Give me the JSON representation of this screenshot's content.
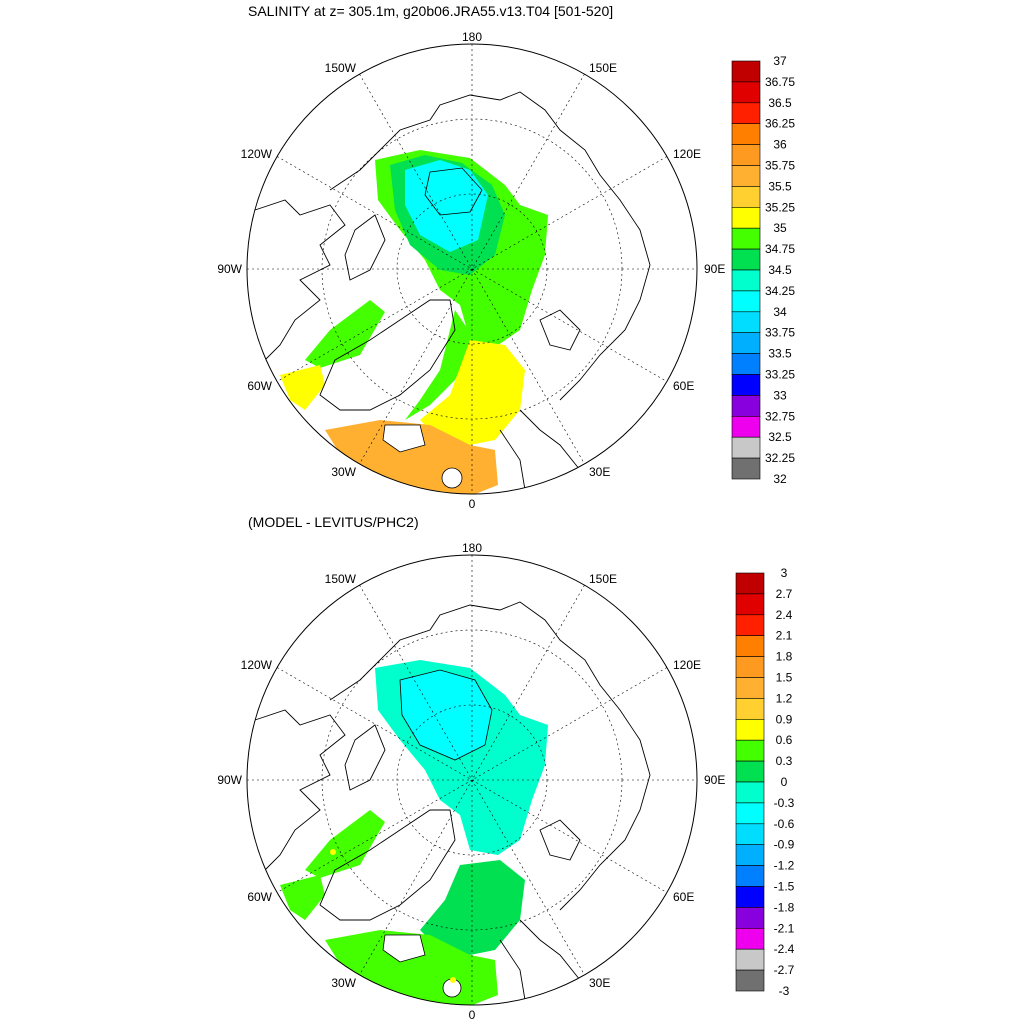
{
  "panels": [
    {
      "title": "SALINITY at z= 305.1m, g20b06.JRA55.v13.T04 [501-520]",
      "lon_labels": {
        "top": "180",
        "bottom": "0",
        "left": "90W",
        "right": "90E",
        "upper_left": "150W",
        "upper_left2": "120W",
        "lower_left": "60W",
        "lower_left2": "30W",
        "upper_right": "150E",
        "upper_right2": "120E",
        "lower_right": "60E",
        "lower_right2": "30E"
      },
      "colorbar": {
        "labels": [
          "37",
          "36.75",
          "36.5",
          "36.25",
          "36",
          "35.75",
          "35.5",
          "35.25",
          "35",
          "34.75",
          "34.5",
          "34.25",
          "34",
          "33.75",
          "33.5",
          "33.25",
          "33",
          "32.75",
          "32.5",
          "32.25",
          "32"
        ],
        "colors": [
          "#c00000",
          "#e00000",
          "#ff2000",
          "#ff8000",
          "#ff9a20",
          "#ffb030",
          "#ffd030",
          "#ffff00",
          "#44ff00",
          "#00e050",
          "#00ffcc",
          "#00ffff",
          "#00ddff",
          "#00b0ff",
          "#0080ff",
          "#0000ff",
          "#8800dd",
          "#ee00ee",
          "#c8c8c8",
          "#707070"
        ]
      }
    },
    {
      "title": "(MODEL - LEVITUS/PHC2)",
      "lon_labels": {
        "top": "180",
        "bottom": "0",
        "left": "90W",
        "right": "90E",
        "upper_left": "150W",
        "upper_left2": "120W",
        "lower_left": "60W",
        "lower_left2": "30W",
        "upper_right": "150E",
        "upper_right2": "120E",
        "lower_right": "60E",
        "lower_right2": "30E"
      },
      "colorbar": {
        "labels": [
          "3",
          "2.7",
          "2.4",
          "2.1",
          "1.8",
          "1.5",
          "1.2",
          "0.9",
          "0.6",
          "0.3",
          "0",
          "-0.3",
          "-0.6",
          "-0.9",
          "-1.2",
          "-1.5",
          "-1.8",
          "-2.1",
          "-2.4",
          "-2.7",
          "-3"
        ],
        "colors": [
          "#c00000",
          "#e00000",
          "#ff2000",
          "#ff8000",
          "#ff9a20",
          "#ffb030",
          "#ffd030",
          "#ffff00",
          "#44ff00",
          "#00e050",
          "#00ffcc",
          "#00ffff",
          "#00ddff",
          "#00b0ff",
          "#0080ff",
          "#0000ff",
          "#8800dd",
          "#ee00ee",
          "#c8c8c8",
          "#707070"
        ]
      }
    }
  ]
}
